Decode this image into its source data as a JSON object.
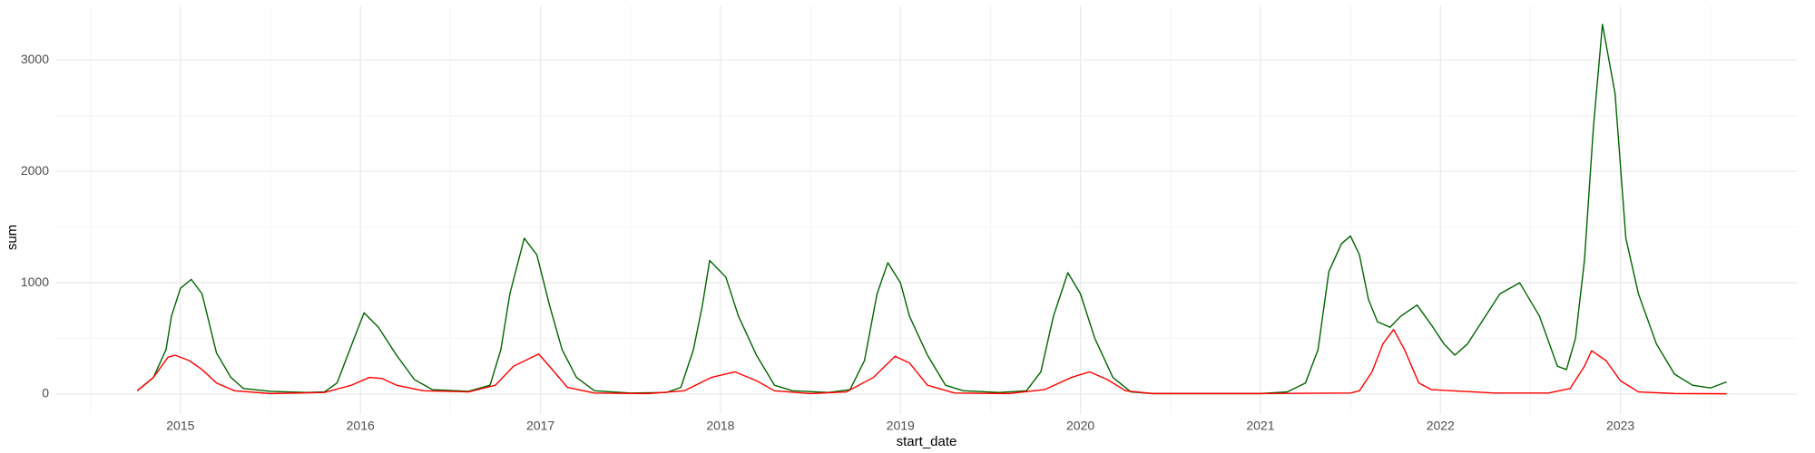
{
  "chart_data": {
    "type": "line",
    "x_label": "start_date",
    "y_label": "sum",
    "xlim": [
      2014.31,
      2023.98
    ],
    "xticks": [
      2015,
      2016,
      2017,
      2018,
      2019,
      2020,
      2021,
      2022,
      2023
    ],
    "ylim": [
      -179,
      3490
    ],
    "yticks": [
      0,
      1000,
      2000,
      3000
    ],
    "grid": true,
    "series": [
      {
        "color": "#006400",
        "x": [
          2014.76,
          2014.85,
          2014.92,
          2014.95,
          2015.0,
          2015.06,
          2015.12,
          2015.2,
          2015.28,
          2015.35,
          2015.5,
          2015.7,
          2015.8,
          2015.87,
          2015.96,
          2016.02,
          2016.1,
          2016.2,
          2016.3,
          2016.4,
          2016.6,
          2016.72,
          2016.78,
          2016.83,
          2016.91,
          2016.98,
          2017.05,
          2017.12,
          2017.2,
          2017.3,
          2017.5,
          2017.7,
          2017.78,
          2017.85,
          2017.9,
          2017.94,
          2018.03,
          2018.1,
          2018.2,
          2018.3,
          2018.4,
          2018.6,
          2018.72,
          2018.8,
          2018.87,
          2018.93,
          2019.0,
          2019.05,
          2019.15,
          2019.25,
          2019.35,
          2019.55,
          2019.7,
          2019.78,
          2019.85,
          2019.93,
          2020.0,
          2020.08,
          2020.18,
          2020.28,
          2020.4,
          2020.7,
          2021.0,
          2021.15,
          2021.25,
          2021.32,
          2021.38,
          2021.45,
          2021.5,
          2021.55,
          2021.6,
          2021.65,
          2021.72,
          2021.78,
          2021.87,
          2021.95,
          2022.02,
          2022.08,
          2022.15,
          2022.25,
          2022.33,
          2022.44,
          2022.55,
          2022.65,
          2022.7,
          2022.75,
          2022.8,
          2022.85,
          2022.9,
          2022.97,
          2023.03,
          2023.1,
          2023.2,
          2023.3,
          2023.4,
          2023.5,
          2023.59
        ],
        "values": [
          30,
          150,
          400,
          700,
          950,
          1030,
          900,
          370,
          150,
          50,
          25,
          15,
          20,
          100,
          480,
          730,
          600,
          350,
          130,
          40,
          25,
          80,
          400,
          900,
          1400,
          1250,
          800,
          400,
          150,
          30,
          10,
          15,
          60,
          400,
          800,
          1200,
          1050,
          700,
          350,
          80,
          30,
          15,
          40,
          300,
          900,
          1180,
          1000,
          700,
          350,
          80,
          30,
          15,
          30,
          200,
          700,
          1090,
          900,
          500,
          150,
          20,
          5,
          5,
          5,
          20,
          100,
          400,
          1100,
          1350,
          1420,
          1250,
          850,
          650,
          600,
          700,
          800,
          620,
          450,
          350,
          450,
          700,
          900,
          1000,
          700,
          250,
          220,
          500,
          1200,
          2400,
          3320,
          2700,
          1400,
          900,
          450,
          180,
          80,
          55,
          110
        ]
      },
      {
        "color": "#ff0000",
        "x": [
          2014.76,
          2014.85,
          2014.93,
          2014.97,
          2015.05,
          2015.12,
          2015.2,
          2015.3,
          2015.5,
          2015.8,
          2015.95,
          2016.05,
          2016.12,
          2016.2,
          2016.35,
          2016.6,
          2016.75,
          2016.85,
          2016.99,
          2017.05,
          2017.15,
          2017.3,
          2017.6,
          2017.8,
          2017.95,
          2018.08,
          2018.2,
          2018.3,
          2018.5,
          2018.7,
          2018.85,
          2018.97,
          2019.05,
          2019.15,
          2019.3,
          2019.6,
          2019.8,
          2019.95,
          2020.05,
          2020.15,
          2020.25,
          2020.4,
          2021.0,
          2021.5,
          2021.55,
          2021.62,
          2021.68,
          2021.74,
          2021.8,
          2021.88,
          2021.95,
          2022.3,
          2022.6,
          2022.72,
          2022.8,
          2022.84,
          2022.92,
          2023.0,
          2023.1,
          2023.3,
          2023.59
        ],
        "values": [
          30,
          150,
          330,
          350,
          300,
          220,
          100,
          30,
          5,
          15,
          80,
          150,
          140,
          80,
          30,
          20,
          80,
          250,
          360,
          250,
          60,
          10,
          5,
          30,
          150,
          200,
          120,
          30,
          5,
          20,
          150,
          340,
          280,
          80,
          10,
          5,
          40,
          150,
          200,
          130,
          30,
          5,
          5,
          10,
          30,
          200,
          450,
          580,
          400,
          100,
          40,
          10,
          10,
          50,
          250,
          390,
          300,
          120,
          20,
          5,
          3
        ]
      }
    ]
  }
}
